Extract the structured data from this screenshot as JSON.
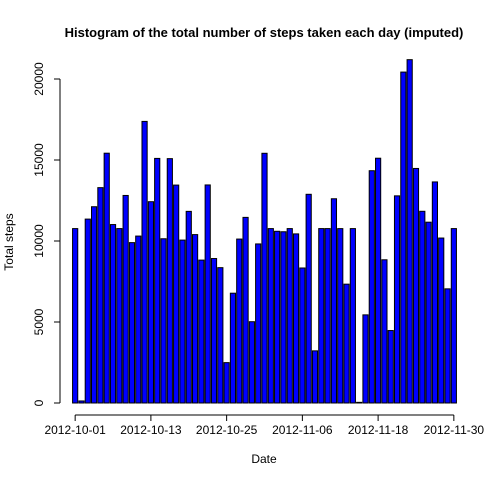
{
  "chart_data": {
    "type": "bar",
    "title": "Histogram of the total number of steps taken each day (imputed)",
    "xlabel": "Date",
    "ylabel": "Total steps",
    "bar_color": "#0000ff",
    "border_color": "#000000",
    "ylim": [
      0,
      21500
    ],
    "yticks": [
      0,
      5000,
      10000,
      15000,
      20000
    ],
    "xtick_labels": [
      "2012-10-01",
      "2012-10-13",
      "2012-10-25",
      "2012-11-06",
      "2012-11-18",
      "2012-11-30"
    ],
    "xtick_indices": [
      0,
      12,
      24,
      36,
      48,
      60
    ],
    "dates_start": "2012-10-01",
    "values": [
      10766,
      126,
      11352,
      12116,
      13294,
      15420,
      11015,
      10766,
      12811,
      9900,
      10304,
      17382,
      12426,
      15098,
      10139,
      15084,
      13452,
      10056,
      11829,
      10395,
      8821,
      13460,
      8918,
      8355,
      2492,
      6778,
      10119,
      11458,
      5018,
      9819,
      15414,
      10766,
      10600,
      10571,
      10766,
      10439,
      8334,
      12883,
      3219,
      10766,
      10766,
      12608,
      10765,
      7336,
      10766,
      41,
      5441,
      14339,
      15110,
      8841,
      4472,
      12787,
      20427,
      21194,
      14478,
      11834,
      11162,
      13646,
      10183,
      7047,
      10766
    ]
  }
}
